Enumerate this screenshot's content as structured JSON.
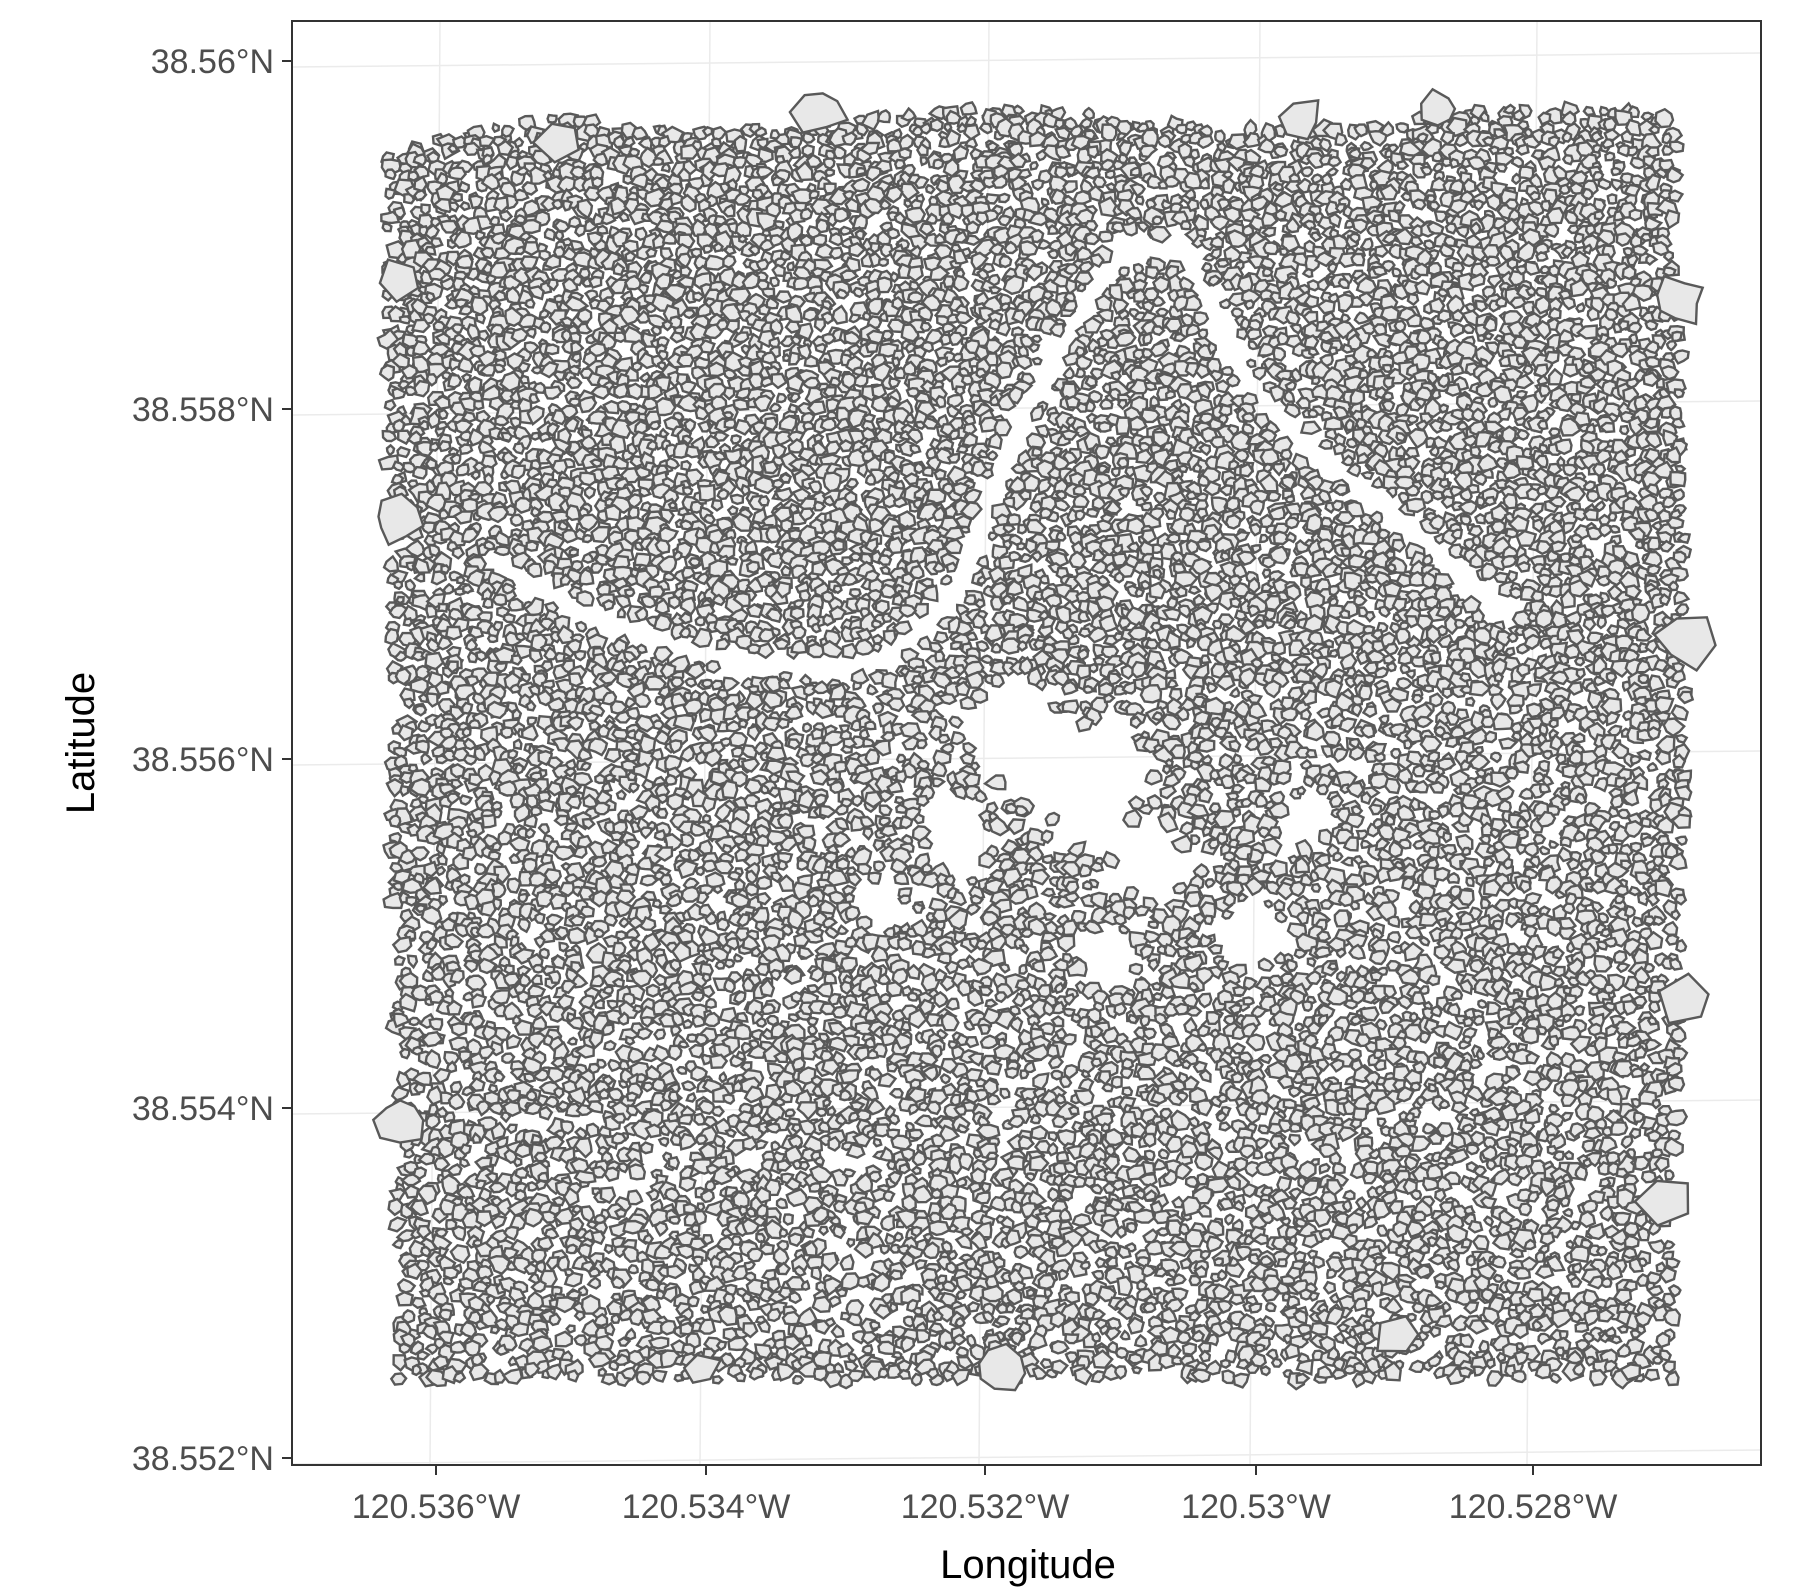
{
  "map": {
    "xlabel": "Longitude",
    "ylabel": "Latitude",
    "x_ticks": [
      "120.536°W",
      "120.534°W",
      "120.532°W",
      "120.53°W",
      "120.528°W"
    ],
    "y_ticks": [
      "38.56°N",
      "38.558°N",
      "38.556°N",
      "38.554°N",
      "38.552°N"
    ],
    "x_tick_values": [
      -120.536,
      -120.534,
      -120.532,
      -120.53,
      -120.528
    ],
    "y_tick_values": [
      38.56,
      38.558,
      38.556,
      38.554,
      38.552
    ],
    "xlim": [
      -120.537,
      -120.5267
    ],
    "ylim": [
      38.5519,
      38.5602
    ],
    "grid": true,
    "polygon_fill": "#e8e8e8",
    "polygon_stroke": "#595959",
    "background": "#ffffff",
    "panel_border": "#333333",
    "grid_color": "#ebebeb",
    "feature_type": "tree crown polygons"
  }
}
